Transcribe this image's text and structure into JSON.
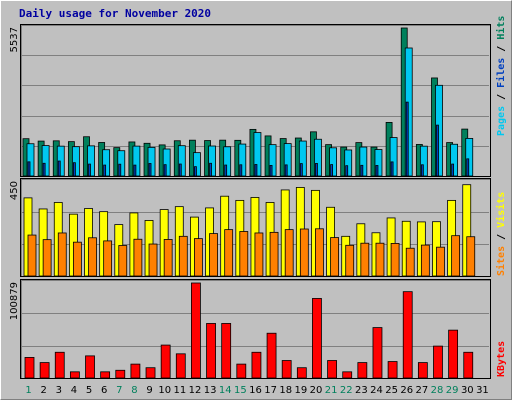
{
  "chart_data": [
    {
      "type": "bar",
      "title": "Daily usage for November 2020",
      "panel": "Hits / Files / Pages",
      "ymax_label": "5537",
      "ymax": 5537,
      "categories": [
        "1",
        "2",
        "3",
        "4",
        "5",
        "6",
        "7",
        "8",
        "9",
        "10",
        "11",
        "12",
        "13",
        "14",
        "15",
        "16",
        "17",
        "18",
        "19",
        "20",
        "21",
        "22",
        "23",
        "24",
        "25",
        "26",
        "27",
        "28",
        "29",
        "30",
        "31"
      ],
      "series": [
        {
          "name": "Hits",
          "color": "#00805c",
          "values": [
            1396,
            1306,
            1316,
            1286,
            1469,
            1254,
            1062,
            1274,
            1224,
            1164,
            1319,
            1340,
            1326,
            1341,
            1335,
            1744,
            1500,
            1401,
            1421,
            1653,
            1174,
            1082,
            1250,
            1082,
            2005,
            5537,
            1180,
            3668,
            1251,
            1755,
            0
          ]
        },
        {
          "name": "Files",
          "color": "#00c8f0",
          "values": [
            1207,
            1138,
            1117,
            1097,
            1128,
            983,
            946,
            1118,
            1071,
            1010,
            1134,
            874,
            1122,
            1093,
            1195,
            1626,
            1173,
            1212,
            1308,
            1375,
            1055,
            974,
            1083,
            990,
            1438,
            4789,
            1116,
            3393,
            1188,
            1406,
            0
          ]
        },
        {
          "name": "Pages",
          "color": "#0040c0",
          "values": [
            530,
            476,
            560,
            498,
            446,
            409,
            442,
            408,
            468,
            424,
            448,
            350,
            476,
            410,
            420,
            430,
            396,
            416,
            464,
            470,
            428,
            386,
            400,
            394,
            528,
            2764,
            420,
            1904,
            446,
            642,
            0
          ]
        }
      ]
    },
    {
      "type": "bar",
      "panel": "Visits / Sites",
      "ymax_label": "450",
      "ymax": 450,
      "categories": [
        "1",
        "2",
        "3",
        "4",
        "5",
        "6",
        "7",
        "8",
        "9",
        "10",
        "11",
        "12",
        "13",
        "14",
        "15",
        "16",
        "17",
        "18",
        "19",
        "20",
        "21",
        "22",
        "23",
        "24",
        "25",
        "26",
        "27",
        "28",
        "29",
        "30",
        "31"
      ],
      "series": [
        {
          "name": "Visits",
          "color": "#ffff00",
          "values": [
            374,
            321,
            352,
            296,
            323,
            308,
            246,
            302,
            266,
            318,
            332,
            282,
            326,
            382,
            362,
            376,
            352,
            412,
            424,
            410,
            329,
            190,
            250,
            207,
            278,
            262,
            259,
            260,
            362,
            437,
            0
          ]
        },
        {
          "name": "Sites",
          "color": "#ff8000",
          "values": [
            196,
            174,
            206,
            162,
            183,
            168,
            146,
            176,
            153,
            175,
            190,
            179,
            203,
            222,
            213,
            206,
            209,
            222,
            225,
            226,
            184,
            147,
            157,
            157,
            156,
            133,
            148,
            138,
            193,
            188,
            0
          ]
        }
      ]
    },
    {
      "type": "bar",
      "panel": "KBytes",
      "ymax_label": "100879",
      "ymax": 100879,
      "categories": [
        "1",
        "2",
        "3",
        "4",
        "5",
        "6",
        "7",
        "8",
        "9",
        "10",
        "11",
        "12",
        "13",
        "14",
        "15",
        "16",
        "17",
        "18",
        "19",
        "20",
        "21",
        "22",
        "23",
        "24",
        "25",
        "26",
        "27",
        "28",
        "29",
        "30",
        "31"
      ],
      "series": [
        {
          "name": "KBytes",
          "color": "#ff0000",
          "values": [
            21858,
            16393,
            27322,
            6557,
            23497,
            6557,
            8197,
            14754,
            10929,
            34973,
            25683,
            100879,
            57924,
            57924,
            14754,
            27322,
            47541,
            18579,
            10929,
            84486,
            18579,
            6557,
            16393,
            53552,
            17487,
            91681,
            16393,
            33880,
            50820,
            27322,
            0
          ]
        }
      ]
    }
  ],
  "header": {
    "title": "Daily usage for November 2020"
  },
  "right_labels": {
    "hits": "Hits",
    "files": "Files",
    "pages": "Pages",
    "visits": "Visits",
    "sites": "Sites",
    "kbytes": "KBytes",
    "sep": " / "
  },
  "weekend_days": [
    1,
    7,
    8,
    14,
    15,
    21,
    22,
    28,
    29
  ],
  "colors": {
    "bg": "#c0c0c0",
    "plot_bg": "#c0c0c0",
    "grid": "#808080",
    "day_label": "#000000",
    "weekend_label": "#00805c",
    "hits_text": "#00805c",
    "files_text": "#0040c0",
    "pages_text": "#00c8f0",
    "visits_text": "#ffff00",
    "sites_text": "#ff8000",
    "kbytes_text": "#ff0000"
  }
}
